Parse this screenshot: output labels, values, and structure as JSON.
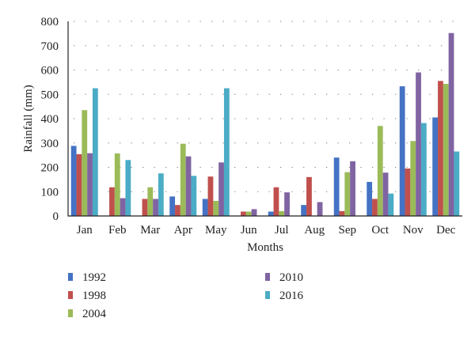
{
  "chart_data": {
    "type": "bar",
    "title": "",
    "xlabel": "Months",
    "ylabel": "Rainfall (mm)",
    "ylim": [
      0,
      800
    ],
    "yticks": [
      "0",
      "100",
      "200",
      "300",
      "400",
      "500",
      "600",
      "700",
      "800"
    ],
    "grid": "dotted horizontal",
    "legend_position": "bottom",
    "categories": [
      "Jan",
      "Feb",
      "Mar",
      "Apr",
      "May",
      "Jun",
      "Jul",
      "Aug",
      "Sep",
      "Oct",
      "Nov",
      "Dec"
    ],
    "series": [
      {
        "name": "1992",
        "color": "#4472c4",
        "values": [
          288,
          0,
          0,
          80,
          70,
          0,
          18,
          45,
          240,
          140,
          533,
          405
        ]
      },
      {
        "name": "1998",
        "color": "#c0504d",
        "values": [
          254,
          118,
          70,
          45,
          162,
          18,
          118,
          160,
          20,
          70,
          195,
          555
        ]
      },
      {
        "name": "2004",
        "color": "#9bbb59",
        "values": [
          435,
          257,
          118,
          297,
          62,
          18,
          20,
          0,
          180,
          370,
          308,
          543
        ]
      },
      {
        "name": "2010",
        "color": "#8064a2",
        "values": [
          258,
          73,
          70,
          245,
          220,
          28,
          97,
          57,
          225,
          178,
          590,
          752
        ]
      },
      {
        "name": "2016",
        "color": "#4bacc6",
        "values": [
          525,
          230,
          175,
          165,
          525,
          0,
          0,
          0,
          0,
          92,
          382,
          265
        ]
      }
    ]
  }
}
